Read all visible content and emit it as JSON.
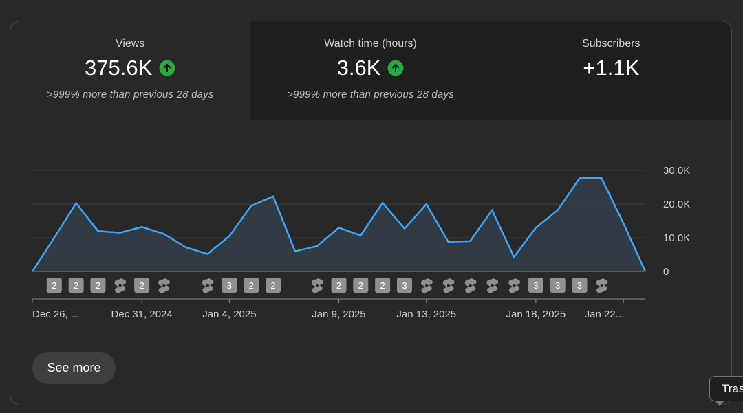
{
  "metrics": [
    {
      "label": "Views",
      "value": "375.6K",
      "trend": "up",
      "comparison": ">999% more than previous 28 days"
    },
    {
      "label": "Watch time (hours)",
      "value": "3.6K",
      "trend": "up",
      "comparison": ">999% more than previous 28 days"
    },
    {
      "label": "Subscribers",
      "value": "+1.1K",
      "trend": "",
      "comparison": ""
    }
  ],
  "colors": {
    "line": "#3ea6ff",
    "trend_up": "#2ba640",
    "grid": "#3f3f3f",
    "badge": "#909090"
  },
  "chart_data": {
    "type": "area",
    "x": [
      "Dec 26, 2024",
      "Dec 27, 2024",
      "Dec 28, 2024",
      "Dec 29, 2024",
      "Dec 30, 2024",
      "Dec 31, 2024",
      "Jan 1, 2025",
      "Jan 2, 2025",
      "Jan 3, 2025",
      "Jan 4, 2025",
      "Jan 5, 2025",
      "Jan 6, 2025",
      "Jan 7, 2025",
      "Jan 8, 2025",
      "Jan 9, 2025",
      "Jan 10, 2025",
      "Jan 11, 2025",
      "Jan 12, 2025",
      "Jan 13, 2025",
      "Jan 14, 2025",
      "Jan 15, 2025",
      "Jan 16, 2025",
      "Jan 17, 2025",
      "Jan 18, 2025",
      "Jan 19, 2025",
      "Jan 20, 2025",
      "Jan 21, 2025",
      "Jan 22, 2025",
      "Jan 23, 2025"
    ],
    "series": [
      {
        "values": [
          0,
          10000,
          20300,
          12000,
          11500,
          13200,
          11200,
          7200,
          5200,
          10500,
          19500,
          22300,
          6000,
          7500,
          13000,
          10700,
          20400,
          12700,
          20000,
          8800,
          9000,
          18200,
          4300,
          13000,
          18200,
          27700,
          27700,
          14300,
          0
        ]
      }
    ],
    "ylim": [
      0,
      30000
    ],
    "yticks": [
      "0",
      "10.0K",
      "20.0K",
      "30.0K"
    ],
    "xtick_labels": [
      {
        "index": 0,
        "label": "Dec 26, ..."
      },
      {
        "index": 5,
        "label": "Dec 31, 2024"
      },
      {
        "index": 9,
        "label": "Jan 4, 2025"
      },
      {
        "index": 14,
        "label": "Jan 9, 2025"
      },
      {
        "index": 18,
        "label": "Jan 13, 2025"
      },
      {
        "index": 23,
        "label": "Jan 18, 2025"
      },
      {
        "index": 27,
        "label": "Jan 22..."
      }
    ],
    "markers": [
      {
        "index": 1,
        "type": "count",
        "text": "2"
      },
      {
        "index": 2,
        "type": "count",
        "text": "2"
      },
      {
        "index": 3,
        "type": "count",
        "text": "2"
      },
      {
        "index": 4,
        "type": "shorts",
        "text": ""
      },
      {
        "index": 5,
        "type": "count",
        "text": "2"
      },
      {
        "index": 6,
        "type": "shorts",
        "text": ""
      },
      {
        "index": 8,
        "type": "shorts",
        "text": ""
      },
      {
        "index": 9,
        "type": "count",
        "text": "3"
      },
      {
        "index": 10,
        "type": "count",
        "text": "2"
      },
      {
        "index": 11,
        "type": "count",
        "text": "2"
      },
      {
        "index": 13,
        "type": "shorts",
        "text": ""
      },
      {
        "index": 14,
        "type": "count",
        "text": "2"
      },
      {
        "index": 15,
        "type": "count",
        "text": "2"
      },
      {
        "index": 16,
        "type": "count",
        "text": "2"
      },
      {
        "index": 17,
        "type": "count",
        "text": "3"
      },
      {
        "index": 18,
        "type": "shorts",
        "text": ""
      },
      {
        "index": 19,
        "type": "shorts",
        "text": ""
      },
      {
        "index": 20,
        "type": "shorts",
        "text": ""
      },
      {
        "index": 21,
        "type": "shorts",
        "text": ""
      },
      {
        "index": 22,
        "type": "shorts",
        "text": ""
      },
      {
        "index": 23,
        "type": "count",
        "text": "3"
      },
      {
        "index": 24,
        "type": "count",
        "text": "3"
      },
      {
        "index": 25,
        "type": "count",
        "text": "3"
      },
      {
        "index": 26,
        "type": "shorts",
        "text": ""
      }
    ],
    "grid": true,
    "legend": "none"
  },
  "see_more_label": "See more",
  "tooltip_text": "Tras"
}
